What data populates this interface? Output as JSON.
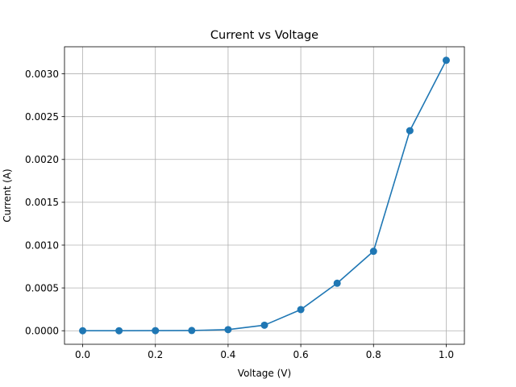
{
  "chart_data": {
    "type": "line",
    "title": "Current vs Voltage",
    "xlabel": "Voltage (V)",
    "ylabel": "Current (A)",
    "xlim": [
      -0.05,
      1.05
    ],
    "ylim": [
      -0.000158,
      0.003316
    ],
    "grid": true,
    "x_ticks": [
      "0.0",
      "0.2",
      "0.4",
      "0.6",
      "0.8",
      "1.0"
    ],
    "y_ticks": [
      "0.0000",
      "0.0005",
      "0.0010",
      "0.0015",
      "0.0020",
      "0.0025",
      "0.0030"
    ],
    "series": [
      {
        "color": "#1f77b4",
        "marker": "circle",
        "x": [
          0.0,
          0.1,
          0.2,
          0.3,
          0.4,
          0.5,
          0.6,
          0.7,
          0.8,
          0.9,
          1.0
        ],
        "y": [
          0.0,
          0.0,
          1e-06,
          3e-06,
          1.3e-05,
          6.5e-05,
          0.000247,
          0.000555,
          0.000928,
          0.002336,
          0.003158
        ]
      }
    ]
  }
}
